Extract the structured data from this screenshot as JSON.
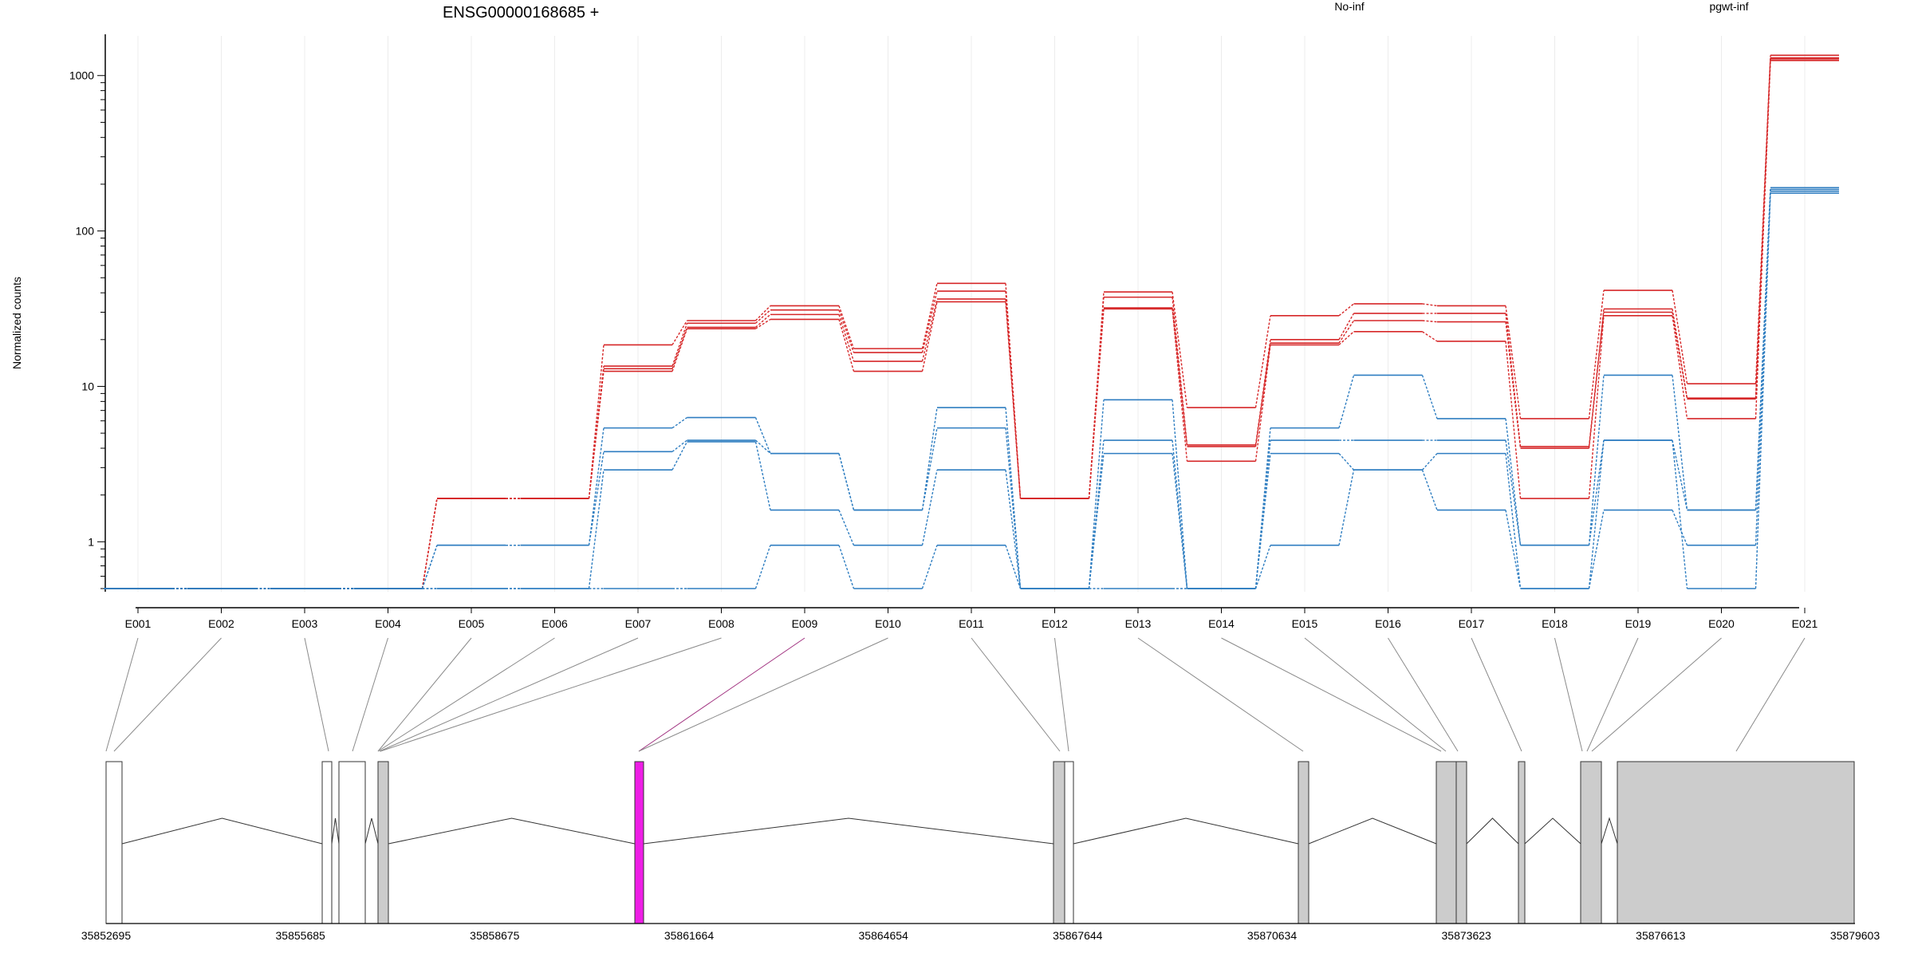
{
  "chart_data": {
    "type": "line",
    "title": "ENSG00000168685 +",
    "ylabel": "Normalized counts",
    "xlabel": "",
    "yscale": "log",
    "ylim": [
      0.5,
      1800
    ],
    "yticks": [
      1,
      10,
      100,
      1000
    ],
    "ytick_labels": [
      "1",
      "10",
      "100",
      "1000"
    ],
    "grid": "vertical",
    "legend_placement": "top",
    "legend": [
      {
        "label": "No-inf",
        "color": "#d62728"
      },
      {
        "label": "pgwt-inf",
        "color": "#2f7ec1"
      }
    ],
    "categories": [
      "E001",
      "E002",
      "E003",
      "E004",
      "E005",
      "E006",
      "E007",
      "E008",
      "E009",
      "E010",
      "E011",
      "E012",
      "E013",
      "E014",
      "E015",
      "E016",
      "E017",
      "E018",
      "E019",
      "E020",
      "E021"
    ],
    "series": [
      {
        "group": "No-inf",
        "color": "#d62728",
        "values": [
          0.5,
          0.5,
          0.5,
          0.5,
          1.9,
          1.9,
          18.5,
          26.5,
          33,
          17.5,
          46,
          1.9,
          40.5,
          7.3,
          28.5,
          34,
          33,
          6.2,
          41.5,
          10.4,
          1350
        ]
      },
      {
        "group": "No-inf",
        "color": "#d62728",
        "values": [
          0.5,
          0.5,
          0.5,
          0.5,
          1.9,
          1.9,
          13.5,
          25.5,
          31,
          16.5,
          41,
          1.9,
          37.5,
          4.2,
          20,
          29.5,
          29.5,
          4.1,
          31.5,
          8.4,
          1300
        ]
      },
      {
        "group": "No-inf",
        "color": "#d62728",
        "values": [
          0.5,
          0.5,
          0.5,
          0.5,
          1.9,
          1.9,
          13,
          24,
          29,
          14.5,
          36.5,
          1.9,
          32,
          4.1,
          19,
          26.5,
          26,
          4.0,
          30,
          8.3,
          1280
        ]
      },
      {
        "group": "No-inf",
        "color": "#d62728",
        "values": [
          0.5,
          0.5,
          0.5,
          0.5,
          1.9,
          1.9,
          12.5,
          23.5,
          27,
          12.5,
          35,
          1.9,
          31.5,
          3.3,
          18.5,
          22.5,
          19.5,
          1.9,
          28.5,
          6.2,
          1250
        ]
      },
      {
        "group": "pgwt-inf",
        "color": "#2f7ec1",
        "values": [
          0.5,
          0.5,
          0.5,
          0.5,
          0.95,
          0.95,
          5.4,
          6.3,
          3.7,
          1.6,
          7.3,
          0.5,
          8.2,
          0.5,
          5.4,
          11.8,
          6.2,
          0.95,
          11.8,
          1.6,
          190
        ]
      },
      {
        "group": "pgwt-inf",
        "color": "#2f7ec1",
        "values": [
          0.5,
          0.5,
          0.5,
          0.5,
          0.95,
          0.95,
          3.8,
          4.5,
          3.7,
          1.6,
          5.4,
          0.5,
          4.5,
          0.5,
          4.5,
          4.5,
          4.5,
          0.95,
          4.5,
          1.6,
          185
        ]
      },
      {
        "group": "pgwt-inf",
        "color": "#2f7ec1",
        "values": [
          0.5,
          0.5,
          0.5,
          0.5,
          0.5,
          0.5,
          2.9,
          4.4,
          1.6,
          0.95,
          2.9,
          0.5,
          3.7,
          0.5,
          3.7,
          2.9,
          3.7,
          0.5,
          1.6,
          0.95,
          180
        ]
      },
      {
        "group": "pgwt-inf",
        "color": "#2f7ec1",
        "values": [
          0.5,
          0.5,
          0.5,
          0.5,
          0.5,
          0.5,
          0.5,
          0.5,
          0.95,
          0.5,
          0.95,
          0.5,
          0.5,
          0.5,
          0.95,
          2.9,
          1.6,
          0.5,
          4.5,
          0.5,
          175
        ]
      }
    ],
    "gene_model": {
      "coordinate_labels": [
        "35852695",
        "35855685",
        "35858675",
        "35861664",
        "35864654",
        "35867644",
        "35870634",
        "35873623",
        "35876613",
        "35879603"
      ],
      "highlight_exon": "E009",
      "highlight_color": "#ee1ee6",
      "exon_fill": "#cccccc"
    }
  }
}
